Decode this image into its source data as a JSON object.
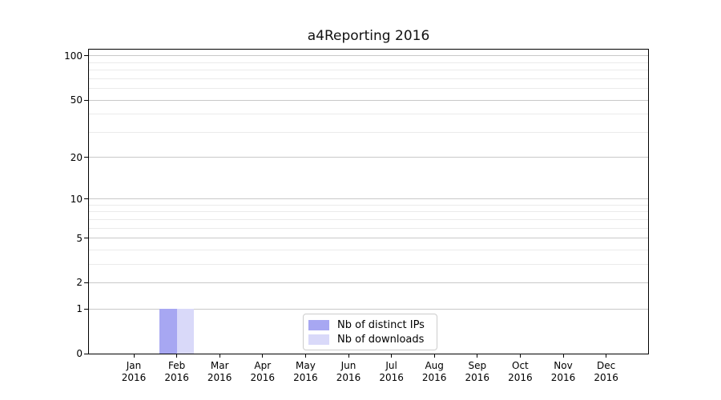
{
  "title": "a4Reporting 2016",
  "chart_data": {
    "type": "bar",
    "title": "a4Reporting 2016",
    "xlabel": "",
    "ylabel": "",
    "categories": [
      "Jan",
      "Feb",
      "Mar",
      "Apr",
      "May",
      "Jun",
      "Jul",
      "Aug",
      "Sep",
      "Oct",
      "Nov",
      "Dec"
    ],
    "x_year_labels": [
      "2016",
      "2016",
      "2016",
      "2016",
      "2016",
      "2016",
      "2016",
      "2016",
      "2016",
      "2016",
      "2016",
      "2016"
    ],
    "series": [
      {
        "name": "Nb of distinct IPs",
        "color": "#a7a7f2",
        "values": [
          0,
          1,
          0,
          0,
          0,
          0,
          0,
          0,
          0,
          0,
          0,
          0
        ]
      },
      {
        "name": "Nb of downloads",
        "color": "#d9d9f9",
        "values": [
          0,
          1,
          0,
          0,
          0,
          0,
          0,
          0,
          0,
          0,
          0,
          0
        ]
      }
    ],
    "y_axis": {
      "scale": "log1p",
      "ylim": [
        0,
        110.5
      ],
      "ticks": [
        0,
        1,
        2,
        5,
        10,
        20,
        50,
        100
      ],
      "minor_ticks": [
        3,
        4,
        6,
        7,
        8,
        9,
        30,
        40,
        60,
        70,
        80,
        90
      ]
    },
    "grid": "horizontal",
    "legend_position": "lower center",
    "colors": {
      "major_grid": "#c9c9c9",
      "minor_grid": "#ebebeb",
      "spine": "#000000",
      "text": "#000000"
    }
  }
}
